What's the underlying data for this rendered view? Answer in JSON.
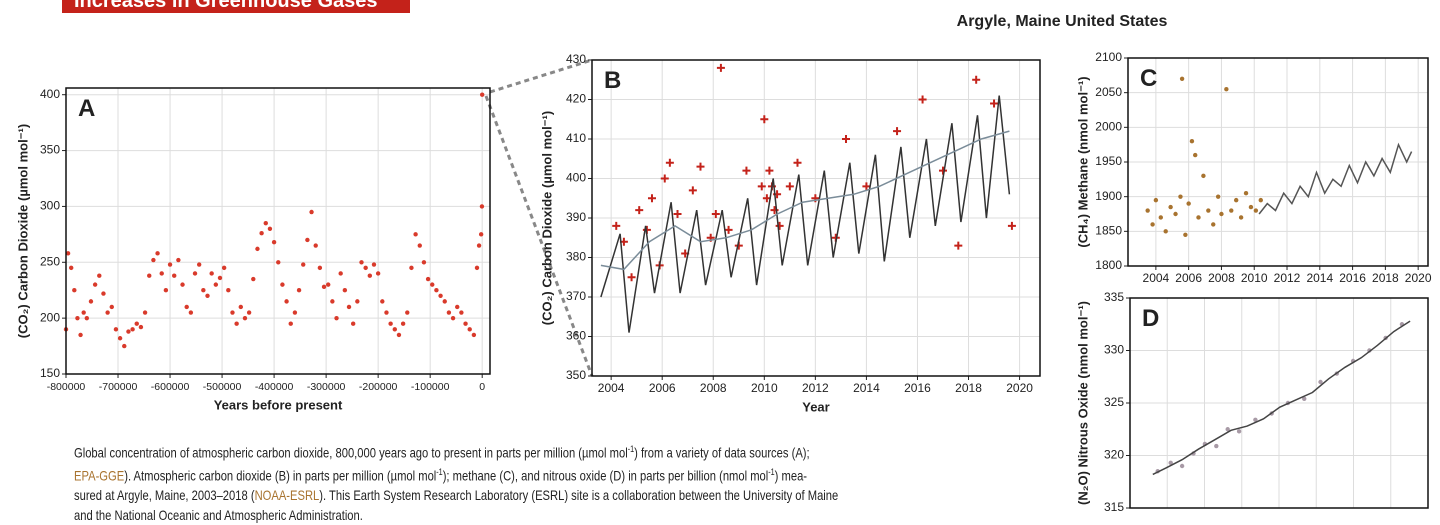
{
  "header": {
    "banner": "Increases in Greenhouse Gases",
    "location": "Argyle, Maine United States"
  },
  "chart_data": [
    {
      "type": "scatter",
      "label": "A",
      "x_label": "Years before present",
      "y_label": "(CO₂) Carbon Dioxide (µmol mol⁻¹)",
      "xlim": [
        -800000,
        15000
      ],
      "ylim": [
        150,
        406
      ],
      "xticks": [
        -800000,
        -700000,
        -600000,
        -500000,
        -400000,
        -300000,
        -200000,
        -100000,
        0
      ],
      "yticks": [
        150,
        200,
        250,
        300,
        350,
        400
      ],
      "grid": true,
      "series": [
        {
          "mode": "markers",
          "marker": "circle",
          "color": "#d93a2b",
          "x": [
            -800000,
            -796000,
            -790000,
            -784000,
            -778000,
            -772000,
            -766000,
            -760000,
            -752000,
            -744000,
            -736000,
            -728000,
            -720000,
            -712000,
            -704000,
            -696000,
            -688000,
            -680000,
            -672000,
            -664000,
            -656000,
            -648000,
            -640000,
            -632000,
            -624000,
            -616000,
            -608000,
            -600000,
            -592000,
            -584000,
            -576000,
            -568000,
            -560000,
            -552000,
            -544000,
            -536000,
            -528000,
            -520000,
            -512000,
            -504000,
            -496000,
            -488000,
            -480000,
            -472000,
            -464000,
            -456000,
            -448000,
            -440000,
            -432000,
            -424000,
            -416000,
            -408000,
            -400000,
            -392000,
            -384000,
            -376000,
            -368000,
            -360000,
            -352000,
            -344000,
            -336000,
            -328000,
            -320000,
            -312000,
            -304000,
            -296000,
            -288000,
            -280000,
            -272000,
            -264000,
            -256000,
            -248000,
            -240000,
            -232000,
            -224000,
            -216000,
            -208000,
            -200000,
            -192000,
            -184000,
            -176000,
            -168000,
            -160000,
            -152000,
            -144000,
            -136000,
            -128000,
            -120000,
            -112000,
            -104000,
            -96000,
            -88000,
            -80000,
            -72000,
            -64000,
            -56000,
            -48000,
            -40000,
            -32000,
            -24000,
            -16000,
            -10000,
            -6000,
            -2000,
            -500,
            0
          ],
          "values": [
            190,
            258,
            245,
            225,
            200,
            185,
            205,
            200,
            215,
            230,
            238,
            222,
            205,
            210,
            190,
            182,
            175,
            188,
            190,
            195,
            192,
            205,
            238,
            252,
            258,
            240,
            225,
            248,
            238,
            252,
            230,
            210,
            205,
            240,
            248,
            225,
            220,
            240,
            230,
            236,
            245,
            225,
            205,
            195,
            210,
            200,
            205,
            235,
            262,
            276,
            285,
            280,
            268,
            250,
            230,
            215,
            195,
            205,
            225,
            248,
            270,
            295,
            265,
            245,
            228,
            230,
            215,
            200,
            240,
            225,
            210,
            195,
            215,
            250,
            245,
            238,
            248,
            240,
            215,
            205,
            195,
            190,
            185,
            195,
            205,
            245,
            275,
            265,
            250,
            235,
            230,
            225,
            220,
            215,
            205,
            200,
            210,
            205,
            195,
            190,
            185,
            245,
            265,
            275,
            300,
            400
          ]
        }
      ]
    },
    {
      "type": "scatter",
      "label": "B",
      "x_label": "Year",
      "y_label": "(CO₂) Carbon Dioxide (µmol mol⁻¹)",
      "xlim": [
        2003.25,
        2020.8
      ],
      "ylim": [
        350,
        430
      ],
      "xticks": [
        2004,
        2006,
        2008,
        2010,
        2012,
        2014,
        2016,
        2018,
        2020
      ],
      "yticks": [
        350,
        360,
        370,
        380,
        390,
        400,
        410,
        420,
        430
      ],
      "grid": true,
      "series": [
        {
          "mode": "markers",
          "marker": "plus",
          "color": "#c4221a",
          "x": [
            2004.2,
            2004.5,
            2004.8,
            2005.1,
            2005.4,
            2005.6,
            2005.9,
            2006.1,
            2006.3,
            2006.6,
            2006.9,
            2007.2,
            2007.5,
            2007.9,
            2008.1,
            2008.3,
            2008.6,
            2009.0,
            2009.3,
            2009.9,
            2010.0,
            2010.1,
            2010.2,
            2010.3,
            2010.4,
            2010.5,
            2010.6,
            2011.0,
            2011.3,
            2012.0,
            2012.8,
            2013.2,
            2014.0,
            2015.2,
            2016.2,
            2017.0,
            2017.6,
            2018.3,
            2019.0,
            2019.7
          ],
          "values": [
            388,
            384,
            375,
            392,
            387,
            395,
            378,
            400,
            404,
            391,
            381,
            397,
            403,
            385,
            391,
            428,
            387,
            383,
            402,
            398,
            415,
            395,
            402,
            398,
            392,
            396,
            388,
            398,
            404,
            395,
            385,
            410,
            398,
            412,
            420,
            402,
            383,
            425,
            419,
            388
          ]
        },
        {
          "mode": "lines",
          "color": "#333333",
          "x": [
            2003.6,
            2004.35,
            2004.7,
            2005.35,
            2005.7,
            2006.35,
            2006.7,
            2007.35,
            2007.7,
            2008.35,
            2008.7,
            2009.35,
            2009.7,
            2010.35,
            2010.7,
            2011.35,
            2011.7,
            2012.35,
            2012.7,
            2013.35,
            2013.7,
            2014.35,
            2014.7,
            2015.35,
            2015.7,
            2016.35,
            2016.7,
            2017.35,
            2017.7,
            2018.35,
            2018.7,
            2019.2,
            2019.6
          ],
          "values": [
            370,
            386,
            361,
            388,
            371,
            394,
            371,
            392,
            373,
            392,
            375,
            395,
            373,
            400,
            378,
            401,
            378,
            402,
            380,
            404,
            381,
            406,
            379,
            408,
            385,
            410,
            388,
            414,
            389,
            416,
            390,
            421,
            396
          ]
        },
        {
          "mode": "lines",
          "color": "#7a8c99",
          "x": [
            2003.6,
            2004.5,
            2005.5,
            2006.5,
            2007.5,
            2008.5,
            2009.5,
            2010.5,
            2011.5,
            2012.5,
            2013.5,
            2014.5,
            2015.5,
            2016.5,
            2017.5,
            2018.5,
            2019.6
          ],
          "values": [
            378,
            377,
            384,
            388,
            384,
            385,
            387,
            391,
            394,
            395,
            396,
            398,
            401,
            404,
            407,
            410,
            412
          ]
        }
      ]
    },
    {
      "type": "scatter",
      "label": "C",
      "y_label": "(CH₄) Methane (nmol mol⁻¹)",
      "xlim": [
        2002.3,
        2020.6
      ],
      "ylim": [
        1800,
        2100
      ],
      "xticks": [
        2004,
        2006,
        2008,
        2010,
        2012,
        2014,
        2016,
        2018,
        2020
      ],
      "yticks": [
        1800,
        1850,
        1900,
        1950,
        2000,
        2050,
        2100
      ],
      "grid": true,
      "series": [
        {
          "mode": "markers",
          "marker": "circle",
          "color": "#a8732f",
          "x": [
            2003.5,
            2003.8,
            2004.0,
            2004.3,
            2004.6,
            2004.9,
            2005.2,
            2005.5,
            2005.6,
            2005.8,
            2006.0,
            2006.2,
            2006.4,
            2006.6,
            2006.9,
            2007.2,
            2007.5,
            2007.8,
            2008.0,
            2008.3,
            2008.6,
            2008.9,
            2009.2,
            2009.5,
            2009.8,
            2010.1,
            2010.4
          ],
          "values": [
            1880,
            1860,
            1895,
            1870,
            1850,
            1885,
            1875,
            1900,
            2070,
            1845,
            1890,
            1980,
            1960,
            1870,
            1930,
            1880,
            1860,
            1900,
            1875,
            2055,
            1880,
            1895,
            1870,
            1905,
            1885,
            1880,
            1895
          ]
        },
        {
          "mode": "lines",
          "color": "#555555",
          "x": [
            2010.3,
            2010.8,
            2011.3,
            2011.8,
            2012.3,
            2012.8,
            2013.3,
            2013.8,
            2014.3,
            2014.8,
            2015.3,
            2015.8,
            2016.3,
            2016.8,
            2017.3,
            2017.8,
            2018.3,
            2018.8,
            2019.3,
            2019.6
          ],
          "values": [
            1875,
            1890,
            1880,
            1905,
            1890,
            1915,
            1900,
            1935,
            1905,
            1925,
            1915,
            1945,
            1920,
            1950,
            1930,
            1955,
            1935,
            1975,
            1950,
            1965
          ]
        }
      ]
    },
    {
      "type": "scatter",
      "label": "D",
      "y_label": "(N₂O) Nitrous Oxide (nmol mol⁻¹)",
      "xlim": [
        2002.3,
        2020.6
      ],
      "ylim": [
        315,
        335
      ],
      "yticks": [
        315,
        320,
        325,
        330,
        335
      ],
      "grid": true,
      "series": [
        {
          "mode": "markers",
          "marker": "circle",
          "color": "#a89aa6",
          "x": [
            2004.0,
            2004.8,
            2005.5,
            2006.2,
            2006.9,
            2007.6,
            2008.3,
            2009.0,
            2010.0,
            2011.0,
            2012.0,
            2013.0,
            2014.0,
            2015.0,
            2016.0,
            2017.0,
            2018.0,
            2019.0
          ],
          "values": [
            318.5,
            319.3,
            319.0,
            320.2,
            321.1,
            320.9,
            322.5,
            322.3,
            323.4,
            324.0,
            325.0,
            325.4,
            327.0,
            327.8,
            329.0,
            330.0,
            331.2,
            332.5
          ]
        },
        {
          "mode": "lines",
          "color": "#444444",
          "x": [
            2003.7,
            2004.5,
            2005.5,
            2006.5,
            2007.5,
            2008.5,
            2009.5,
            2010.5,
            2011.5,
            2012.5,
            2013.5,
            2014.5,
            2015.5,
            2016.5,
            2017.5,
            2018.5,
            2019.5
          ],
          "values": [
            318.2,
            318.8,
            319.6,
            320.6,
            321.5,
            322.4,
            322.8,
            323.5,
            324.6,
            325.3,
            326.0,
            327.3,
            328.4,
            329.3,
            330.5,
            331.8,
            332.8
          ]
        }
      ]
    }
  ],
  "caption": [
    [
      {
        "text": "Global concentration of atmospheric carbon dioxide, 800,000 years ago to present in parts per million (µmol mol"
      },
      {
        "text": "-1",
        "sup": true
      },
      {
        "text": ") from a variety of data sources (A);"
      }
    ],
    [
      {
        "text": "EPA-GGE",
        "color": "#a8732f"
      },
      {
        "text": "). Atmospheric carbon dioxide (B) in parts per million (µmol mol"
      },
      {
        "text": "-1",
        "sup": true
      },
      {
        "text": "); methane (C), and nitrous oxide (D) in parts per billion (nmol mol"
      },
      {
        "text": "-1",
        "sup": true
      },
      {
        "text": ") mea-"
      }
    ],
    [
      {
        "text": "sured at Argyle, Maine, 2003–2018 ("
      },
      {
        "text": "NOAA-ESRL",
        "color": "#a8732f"
      },
      {
        "text": "). This Earth System Research Laboratory (ESRL) site is a collaboration between the University of Maine"
      }
    ],
    [
      {
        "text": "and the National Oceanic and Atmospheric Administration."
      }
    ]
  ]
}
